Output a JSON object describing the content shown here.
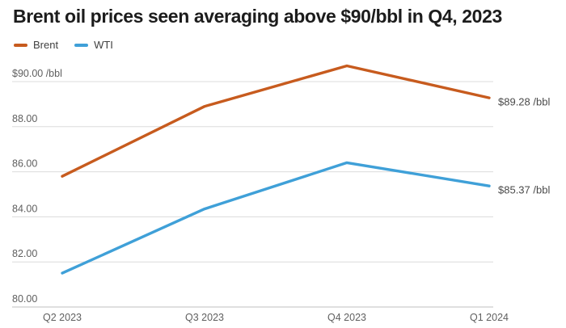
{
  "chart_data": {
    "type": "line",
    "title": "Brent oil prices seen averaging above $90/bbl in Q4, 2023",
    "categories": [
      "Q2 2023",
      "Q3 2023",
      "Q4 2023",
      "Q1 2024"
    ],
    "series": [
      {
        "name": "Brent",
        "color": "#c75b1e",
        "values": [
          85.8,
          88.9,
          90.7,
          89.28
        ],
        "end_label": "$89.28 /bbl"
      },
      {
        "name": "WTI",
        "color": "#3fa0d8",
        "values": [
          81.5,
          84.35,
          86.4,
          85.37
        ],
        "end_label": "$85.37 /bbl"
      }
    ],
    "y_ticks": [
      {
        "value": 90,
        "label": "$90.00 /bbl"
      },
      {
        "value": 88,
        "label": "88.00"
      },
      {
        "value": 86,
        "label": "86.00"
      },
      {
        "value": 84,
        "label": "84.00"
      },
      {
        "value": 82,
        "label": "82.00"
      },
      {
        "value": 80,
        "label": "80.00"
      }
    ],
    "ylim": [
      80,
      91
    ],
    "grid": true,
    "legend_position": "top-left",
    "colors": {
      "grid_color": "#dcdcdc",
      "axis_line_color": "#bfbfbf",
      "tick_text_color": "#5f5f5f",
      "title_color": "#1c1c1c"
    }
  }
}
